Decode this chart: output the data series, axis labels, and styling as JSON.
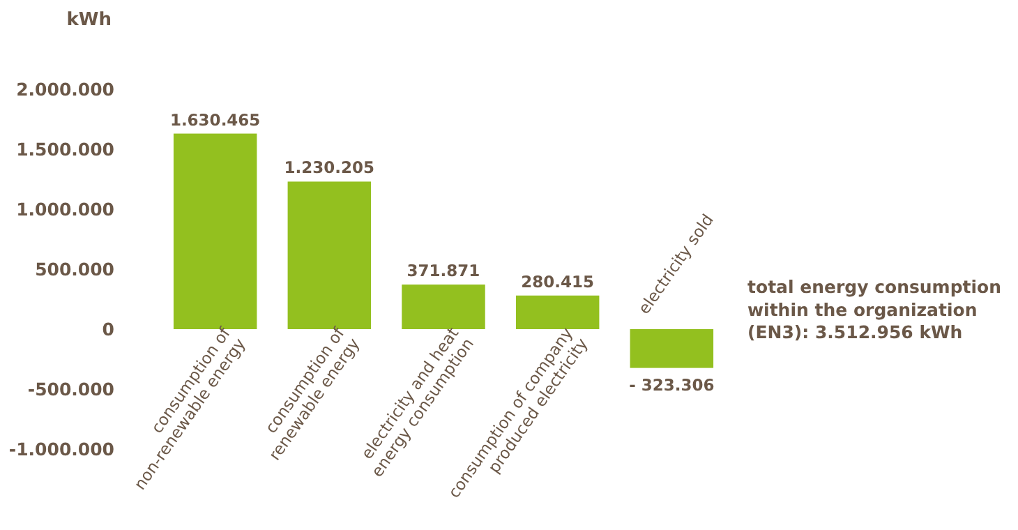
{
  "chart_data": {
    "type": "bar",
    "ylabel": "kWh",
    "categories": [
      "consumption of\nnon-renewable energy",
      "consumption of\nrenewable energy",
      "electricity and heat\nenergy consumption",
      "consumption of company\nproduced electricity",
      "electricity sold"
    ],
    "values": [
      1630465,
      1230205,
      371871,
      280415,
      -323306
    ],
    "value_labels": [
      "1.630.465",
      "1.230.205",
      "371.871",
      "280.415",
      "- 323.306"
    ],
    "color": "#93c01f",
    "ylim": [
      -1000000,
      2000000
    ],
    "yticks": [
      {
        "value": 2000000,
        "label": "2.000.000"
      },
      {
        "value": 1500000,
        "label": "1.500.000"
      },
      {
        "value": 1000000,
        "label": "1.000.000"
      },
      {
        "value": 500000,
        "label": "500.000"
      },
      {
        "value": 0,
        "label": "0"
      },
      {
        "value": -500000,
        "label": "-500.000"
      },
      {
        "value": -1000000,
        "label": "-1.000.000"
      }
    ],
    "annotations": [
      "total energy consumption\nwithin the organization\n(EN3): 3.512.956 kWh"
    ],
    "grid": false
  }
}
